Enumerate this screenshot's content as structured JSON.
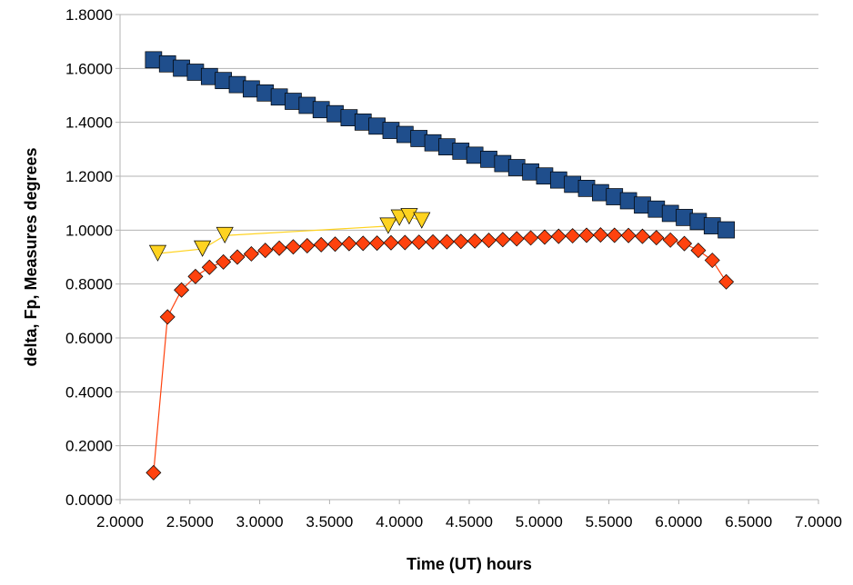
{
  "chart_data": {
    "type": "scatter",
    "title": "",
    "xlabel": "Time (UT) hours",
    "ylabel": "delta, Fp, Measures degrees",
    "xlim": [
      2.0,
      7.0
    ],
    "ylim": [
      0.0,
      1.8
    ],
    "x_ticks": [
      "2.0000",
      "2.5000",
      "3.0000",
      "3.5000",
      "4.0000",
      "4.5000",
      "5.0000",
      "5.5000",
      "6.0000",
      "6.5000",
      "7.0000"
    ],
    "y_ticks": [
      "0.0000",
      "0.2000",
      "0.4000",
      "0.6000",
      "0.8000",
      "1.0000",
      "1.2000",
      "1.4000",
      "1.6000",
      "1.8000"
    ],
    "grid": "horizontal",
    "legend": "none",
    "series": [
      {
        "marker": "square",
        "color": "#1f4e8c",
        "line": false,
        "x": [
          2.24,
          2.34,
          2.44,
          2.54,
          2.64,
          2.74,
          2.84,
          2.94,
          3.04,
          3.14,
          3.24,
          3.34,
          3.44,
          3.54,
          3.64,
          3.74,
          3.84,
          3.94,
          4.04,
          4.14,
          4.24,
          4.34,
          4.44,
          4.54,
          4.64,
          4.74,
          4.84,
          4.94,
          5.04,
          5.14,
          5.24,
          5.34,
          5.44,
          5.54,
          5.64,
          5.74,
          5.84,
          5.94,
          6.04,
          6.14,
          6.24,
          6.34
        ],
        "y": [
          1.632,
          1.617,
          1.601,
          1.586,
          1.57,
          1.555,
          1.54,
          1.524,
          1.509,
          1.494,
          1.478,
          1.463,
          1.447,
          1.432,
          1.417,
          1.401,
          1.386,
          1.37,
          1.355,
          1.34,
          1.324,
          1.309,
          1.293,
          1.278,
          1.263,
          1.247,
          1.232,
          1.216,
          1.201,
          1.186,
          1.17,
          1.155,
          1.139,
          1.124,
          1.109,
          1.093,
          1.078,
          1.062,
          1.047,
          1.032,
          1.016,
          1.001
        ]
      },
      {
        "marker": "diamond",
        "color": "#ff420e",
        "line": true,
        "x": [
          2.24,
          2.34,
          2.44,
          2.54,
          2.64,
          2.74,
          2.84,
          2.94,
          3.04,
          3.14,
          3.24,
          3.34,
          3.44,
          3.54,
          3.64,
          3.74,
          3.84,
          3.94,
          4.04,
          4.14,
          4.24,
          4.34,
          4.44,
          4.54,
          4.64,
          4.74,
          4.84,
          4.94,
          5.04,
          5.14,
          5.24,
          5.34,
          5.44,
          5.54,
          5.64,
          5.74,
          5.84,
          5.94,
          6.04,
          6.14,
          6.24,
          6.34
        ],
        "y": [
          0.1,
          0.678,
          0.778,
          0.828,
          0.862,
          0.882,
          0.9,
          0.912,
          0.925,
          0.933,
          0.938,
          0.942,
          0.946,
          0.948,
          0.95,
          0.951,
          0.952,
          0.953,
          0.954,
          0.955,
          0.956,
          0.957,
          0.958,
          0.96,
          0.962,
          0.965,
          0.968,
          0.971,
          0.974,
          0.977,
          0.979,
          0.981,
          0.982,
          0.981,
          0.98,
          0.977,
          0.972,
          0.963,
          0.95,
          0.925,
          0.888,
          0.808
        ]
      },
      {
        "marker": "triangle-down",
        "color": "#ffd320",
        "line": true,
        "x": [
          2.27,
          2.59,
          2.75,
          3.92,
          4.0,
          4.07,
          4.16
        ],
        "y": [
          0.913,
          0.93,
          0.98,
          1.015,
          1.045,
          1.05,
          1.035
        ]
      }
    ]
  }
}
